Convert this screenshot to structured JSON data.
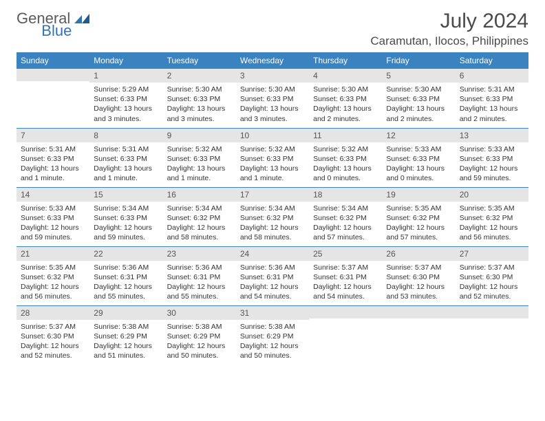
{
  "brand": {
    "part1": "General",
    "part2": "Blue"
  },
  "colors": {
    "brand_blue": "#2f74b5",
    "header_bg": "#3b83c0",
    "header_text": "#ffffff",
    "daynum_bg": "#e5e5e5",
    "text": "#333333",
    "rule": "#3b83c0"
  },
  "title": "July 2024",
  "location": "Caramutan, Ilocos, Philippines",
  "weekdays": [
    "Sunday",
    "Monday",
    "Tuesday",
    "Wednesday",
    "Thursday",
    "Friday",
    "Saturday"
  ],
  "weeks": [
    [
      {
        "day": "",
        "sunrise": "",
        "sunset": "",
        "daylight": ""
      },
      {
        "day": "1",
        "sunrise": "Sunrise: 5:29 AM",
        "sunset": "Sunset: 6:33 PM",
        "daylight": "Daylight: 13 hours and 3 minutes."
      },
      {
        "day": "2",
        "sunrise": "Sunrise: 5:30 AM",
        "sunset": "Sunset: 6:33 PM",
        "daylight": "Daylight: 13 hours and 3 minutes."
      },
      {
        "day": "3",
        "sunrise": "Sunrise: 5:30 AM",
        "sunset": "Sunset: 6:33 PM",
        "daylight": "Daylight: 13 hours and 3 minutes."
      },
      {
        "day": "4",
        "sunrise": "Sunrise: 5:30 AM",
        "sunset": "Sunset: 6:33 PM",
        "daylight": "Daylight: 13 hours and 2 minutes."
      },
      {
        "day": "5",
        "sunrise": "Sunrise: 5:30 AM",
        "sunset": "Sunset: 6:33 PM",
        "daylight": "Daylight: 13 hours and 2 minutes."
      },
      {
        "day": "6",
        "sunrise": "Sunrise: 5:31 AM",
        "sunset": "Sunset: 6:33 PM",
        "daylight": "Daylight: 13 hours and 2 minutes."
      }
    ],
    [
      {
        "day": "7",
        "sunrise": "Sunrise: 5:31 AM",
        "sunset": "Sunset: 6:33 PM",
        "daylight": "Daylight: 13 hours and 1 minute."
      },
      {
        "day": "8",
        "sunrise": "Sunrise: 5:31 AM",
        "sunset": "Sunset: 6:33 PM",
        "daylight": "Daylight: 13 hours and 1 minute."
      },
      {
        "day": "9",
        "sunrise": "Sunrise: 5:32 AM",
        "sunset": "Sunset: 6:33 PM",
        "daylight": "Daylight: 13 hours and 1 minute."
      },
      {
        "day": "10",
        "sunrise": "Sunrise: 5:32 AM",
        "sunset": "Sunset: 6:33 PM",
        "daylight": "Daylight: 13 hours and 1 minute."
      },
      {
        "day": "11",
        "sunrise": "Sunrise: 5:32 AM",
        "sunset": "Sunset: 6:33 PM",
        "daylight": "Daylight: 13 hours and 0 minutes."
      },
      {
        "day": "12",
        "sunrise": "Sunrise: 5:33 AM",
        "sunset": "Sunset: 6:33 PM",
        "daylight": "Daylight: 13 hours and 0 minutes."
      },
      {
        "day": "13",
        "sunrise": "Sunrise: 5:33 AM",
        "sunset": "Sunset: 6:33 PM",
        "daylight": "Daylight: 12 hours and 59 minutes."
      }
    ],
    [
      {
        "day": "14",
        "sunrise": "Sunrise: 5:33 AM",
        "sunset": "Sunset: 6:33 PM",
        "daylight": "Daylight: 12 hours and 59 minutes."
      },
      {
        "day": "15",
        "sunrise": "Sunrise: 5:34 AM",
        "sunset": "Sunset: 6:33 PM",
        "daylight": "Daylight: 12 hours and 59 minutes."
      },
      {
        "day": "16",
        "sunrise": "Sunrise: 5:34 AM",
        "sunset": "Sunset: 6:32 PM",
        "daylight": "Daylight: 12 hours and 58 minutes."
      },
      {
        "day": "17",
        "sunrise": "Sunrise: 5:34 AM",
        "sunset": "Sunset: 6:32 PM",
        "daylight": "Daylight: 12 hours and 58 minutes."
      },
      {
        "day": "18",
        "sunrise": "Sunrise: 5:34 AM",
        "sunset": "Sunset: 6:32 PM",
        "daylight": "Daylight: 12 hours and 57 minutes."
      },
      {
        "day": "19",
        "sunrise": "Sunrise: 5:35 AM",
        "sunset": "Sunset: 6:32 PM",
        "daylight": "Daylight: 12 hours and 57 minutes."
      },
      {
        "day": "20",
        "sunrise": "Sunrise: 5:35 AM",
        "sunset": "Sunset: 6:32 PM",
        "daylight": "Daylight: 12 hours and 56 minutes."
      }
    ],
    [
      {
        "day": "21",
        "sunrise": "Sunrise: 5:35 AM",
        "sunset": "Sunset: 6:32 PM",
        "daylight": "Daylight: 12 hours and 56 minutes."
      },
      {
        "day": "22",
        "sunrise": "Sunrise: 5:36 AM",
        "sunset": "Sunset: 6:31 PM",
        "daylight": "Daylight: 12 hours and 55 minutes."
      },
      {
        "day": "23",
        "sunrise": "Sunrise: 5:36 AM",
        "sunset": "Sunset: 6:31 PM",
        "daylight": "Daylight: 12 hours and 55 minutes."
      },
      {
        "day": "24",
        "sunrise": "Sunrise: 5:36 AM",
        "sunset": "Sunset: 6:31 PM",
        "daylight": "Daylight: 12 hours and 54 minutes."
      },
      {
        "day": "25",
        "sunrise": "Sunrise: 5:37 AM",
        "sunset": "Sunset: 6:31 PM",
        "daylight": "Daylight: 12 hours and 54 minutes."
      },
      {
        "day": "26",
        "sunrise": "Sunrise: 5:37 AM",
        "sunset": "Sunset: 6:30 PM",
        "daylight": "Daylight: 12 hours and 53 minutes."
      },
      {
        "day": "27",
        "sunrise": "Sunrise: 5:37 AM",
        "sunset": "Sunset: 6:30 PM",
        "daylight": "Daylight: 12 hours and 52 minutes."
      }
    ],
    [
      {
        "day": "28",
        "sunrise": "Sunrise: 5:37 AM",
        "sunset": "Sunset: 6:30 PM",
        "daylight": "Daylight: 12 hours and 52 minutes."
      },
      {
        "day": "29",
        "sunrise": "Sunrise: 5:38 AM",
        "sunset": "Sunset: 6:29 PM",
        "daylight": "Daylight: 12 hours and 51 minutes."
      },
      {
        "day": "30",
        "sunrise": "Sunrise: 5:38 AM",
        "sunset": "Sunset: 6:29 PM",
        "daylight": "Daylight: 12 hours and 50 minutes."
      },
      {
        "day": "31",
        "sunrise": "Sunrise: 5:38 AM",
        "sunset": "Sunset: 6:29 PM",
        "daylight": "Daylight: 12 hours and 50 minutes."
      },
      {
        "day": "",
        "sunrise": "",
        "sunset": "",
        "daylight": ""
      },
      {
        "day": "",
        "sunrise": "",
        "sunset": "",
        "daylight": ""
      },
      {
        "day": "",
        "sunrise": "",
        "sunset": "",
        "daylight": ""
      }
    ]
  ]
}
